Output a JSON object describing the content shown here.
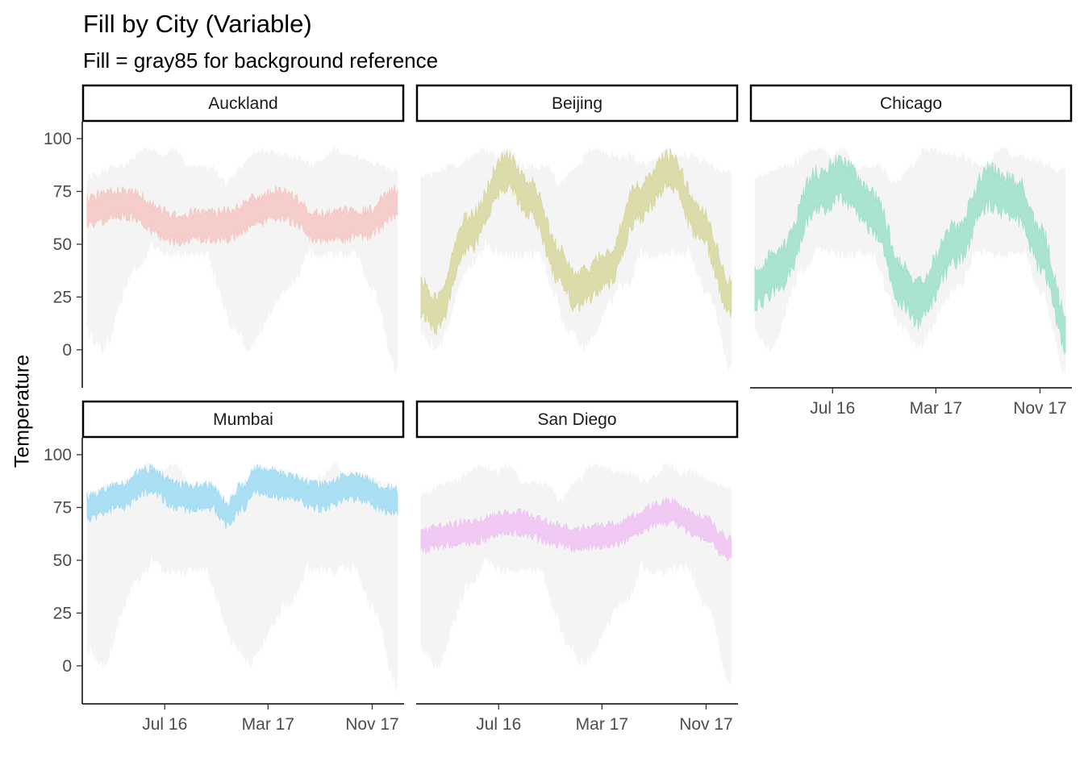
{
  "chart_data": {
    "type": "area",
    "title": "Fill by City (Variable)",
    "subtitle": "Fill = gray85 for background reference",
    "xlabel": "",
    "ylabel": "Temperature",
    "y_ticks": [
      0,
      25,
      50,
      75,
      100
    ],
    "ylim": [
      -18,
      108
    ],
    "x_ticks": [
      {
        "label": "Jul 16",
        "date": "2016-07-01"
      },
      {
        "label": "Mar 17",
        "date": "2017-03-01"
      },
      {
        "label": "Nov 17",
        "date": "2017-11-01"
      }
    ],
    "xlim": [
      "2015-12-20",
      "2018-01-15"
    ],
    "series_x_range": [
      "2015-12-31",
      "2017-12-31"
    ],
    "background": {
      "fill": "gray85",
      "alpha": 0.3,
      "range_all_cities": [
        -12,
        101
      ]
    },
    "grid": false,
    "legend": "none",
    "panels": [
      {
        "city": "Auckland",
        "color": "#F8766D",
        "spread": 9,
        "knots": [
          [
            0,
            66
          ],
          [
            0.12,
            70
          ],
          [
            0.28,
            58
          ],
          [
            0.45,
            59
          ],
          [
            0.55,
            66
          ],
          [
            0.62,
            69
          ],
          [
            0.75,
            58
          ],
          [
            0.9,
            60
          ],
          [
            1.0,
            70
          ]
        ]
      },
      {
        "city": "Beijing",
        "color": "#A3A500",
        "spread": 11,
        "knots": [
          [
            0,
            25
          ],
          [
            0.05,
            17
          ],
          [
            0.15,
            55
          ],
          [
            0.28,
            85
          ],
          [
            0.35,
            72
          ],
          [
            0.45,
            40
          ],
          [
            0.5,
            28
          ],
          [
            0.6,
            38
          ],
          [
            0.7,
            70
          ],
          [
            0.8,
            85
          ],
          [
            0.9,
            60
          ],
          [
            1.0,
            25
          ]
        ]
      },
      {
        "city": "Chicago",
        "color": "#00BF7D",
        "spread": 13,
        "knots": [
          [
            0,
            30
          ],
          [
            0.08,
            38
          ],
          [
            0.2,
            75
          ],
          [
            0.28,
            80
          ],
          [
            0.38,
            65
          ],
          [
            0.48,
            30
          ],
          [
            0.52,
            22
          ],
          [
            0.65,
            50
          ],
          [
            0.75,
            77
          ],
          [
            0.85,
            70
          ],
          [
            0.92,
            48
          ],
          [
            1.0,
            10
          ]
        ]
      },
      {
        "city": "Mumbai",
        "color": "#00B0F6",
        "spread": 8,
        "knots": [
          [
            0,
            75
          ],
          [
            0.1,
            80
          ],
          [
            0.2,
            88
          ],
          [
            0.3,
            80
          ],
          [
            0.4,
            80
          ],
          [
            0.45,
            72
          ],
          [
            0.5,
            80
          ],
          [
            0.55,
            88
          ],
          [
            0.65,
            85
          ],
          [
            0.75,
            80
          ],
          [
            0.85,
            85
          ],
          [
            1.0,
            78
          ]
        ]
      },
      {
        "city": "San Diego",
        "color": "#E76BF3",
        "spread": 7,
        "knots": [
          [
            0,
            60
          ],
          [
            0.15,
            63
          ],
          [
            0.3,
            68
          ],
          [
            0.45,
            62
          ],
          [
            0.5,
            60
          ],
          [
            0.6,
            62
          ],
          [
            0.8,
            73
          ],
          [
            0.9,
            66
          ],
          [
            1.0,
            55
          ]
        ]
      }
    ]
  }
}
